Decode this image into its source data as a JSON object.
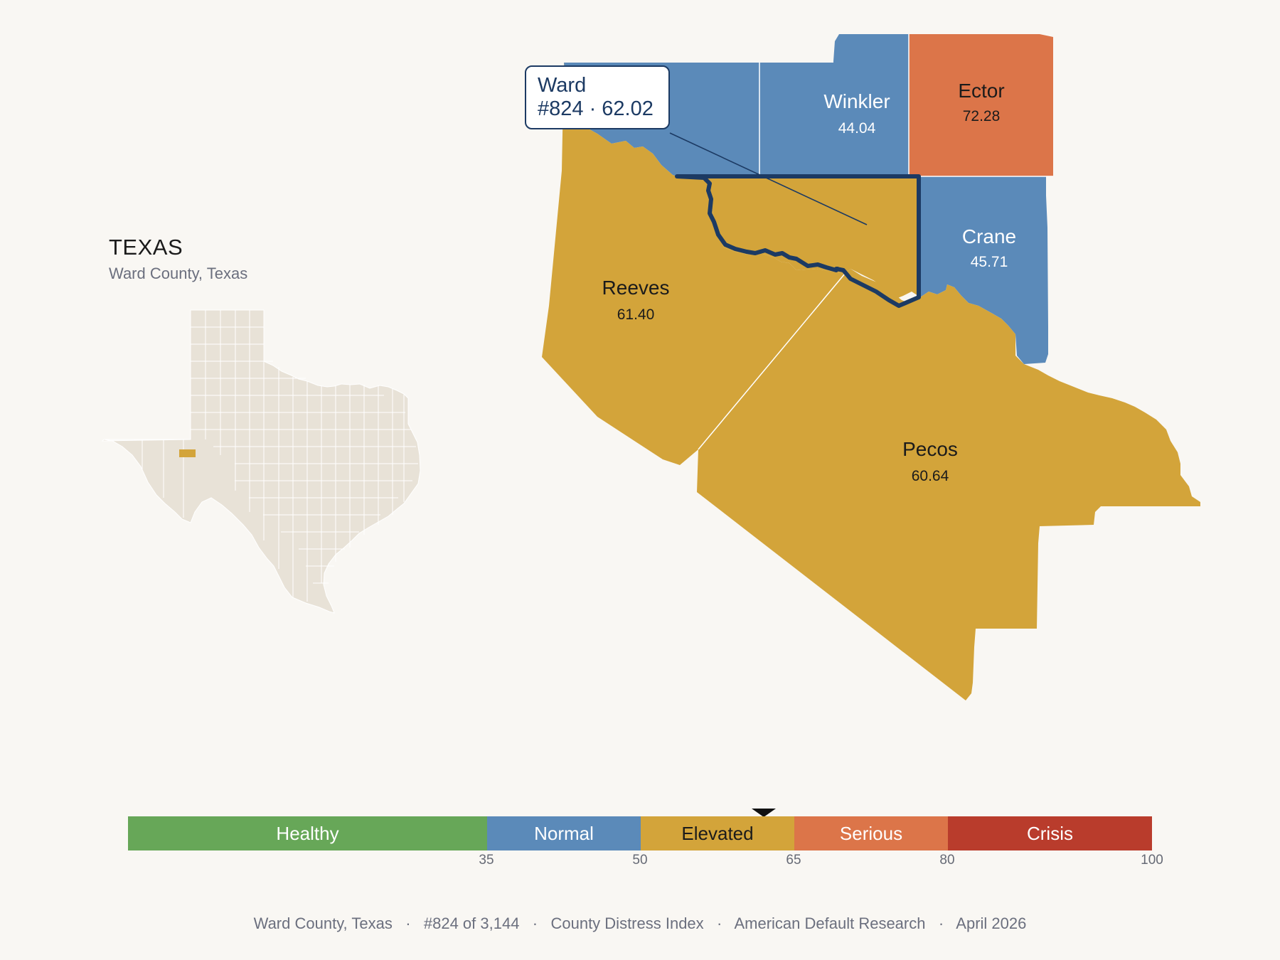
{
  "state": {
    "title": "TEXAS",
    "subtitle": "Ward County, Texas"
  },
  "colors": {
    "healthy": "#67a758",
    "normal": "#5b8ab9",
    "elevated": "#d3a43a",
    "serious": "#dc7549",
    "crisis": "#b93c2c",
    "inset_land": "#e8e2d7",
    "highlight_border": "#1c3a63"
  },
  "counties": [
    {
      "name": "Winkler",
      "value": "44.04",
      "category": "normal"
    },
    {
      "name": "Ector",
      "value": "72.28",
      "category": "serious"
    },
    {
      "name": "Crane",
      "value": "45.71",
      "category": "normal"
    },
    {
      "name": "Reeves",
      "value": "61.40",
      "category": "elevated"
    },
    {
      "name": "Pecos",
      "value": "60.64",
      "category": "elevated"
    },
    {
      "name": "Ward",
      "category": "elevated",
      "highlighted": true
    }
  ],
  "tooltip": {
    "name": "Ward",
    "detail": "#824 · 62.02",
    "rank": 824,
    "score": 62.02
  },
  "scale": {
    "segments": [
      {
        "label": "Healthy",
        "from": 0,
        "to": 35
      },
      {
        "label": "Normal",
        "from": 35,
        "to": 50
      },
      {
        "label": "Elevated",
        "from": 50,
        "to": 65
      },
      {
        "label": "Serious",
        "from": 65,
        "to": 80
      },
      {
        "label": "Crisis",
        "from": 80,
        "to": 100
      }
    ],
    "ticks": [
      "35",
      "50",
      "65",
      "80",
      "100"
    ],
    "marker_value": 62.02
  },
  "footer": {
    "county": "Ward County, Texas",
    "rank": "#824 of 3,144",
    "index": "County Distress Index",
    "publisher": "American Default Research",
    "date": "April 2026",
    "separator": "·"
  }
}
